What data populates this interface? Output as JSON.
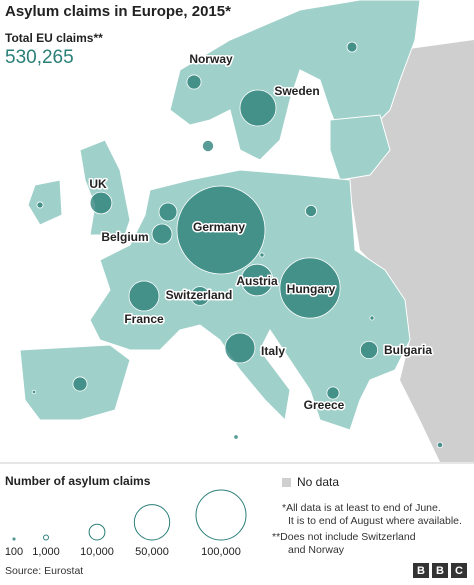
{
  "map": {
    "title": "Asylum claims in Europe, 2015*",
    "total_title": "Total EU claims**",
    "total": "530,265",
    "bubbles": [
      {
        "label": "Germany",
        "value": 310000
      },
      {
        "label": "Hungary",
        "value": 145000
      },
      {
        "label": "Sweden",
        "value": 52000
      },
      {
        "label": "Austria",
        "value": 40000
      },
      {
        "label": "Italy",
        "value": 36000
      },
      {
        "label": "France",
        "value": 36000
      },
      {
        "label": "UK",
        "value": 19000
      },
      {
        "label": "Belgium",
        "value": 16000
      },
      {
        "label": "Switzerland",
        "value": 14000
      },
      {
        "label": "Norway",
        "value": 8000
      },
      {
        "label": "Bulgaria",
        "value": 12000
      },
      {
        "label": "Greece",
        "value": 6000
      },
      {
        "value": 13000
      },
      {
        "value": 5000
      },
      {
        "value": 5000
      },
      {
        "value": 4000
      },
      {
        "value": 8000
      },
      {
        "value": 1500
      },
      {
        "value": 700
      },
      {
        "value": 700
      },
      {
        "value": 500
      },
      {
        "value": 1200
      },
      {
        "value": 800
      }
    ],
    "legend": {
      "title": "Number of asylum claims",
      "sizes": [
        100,
        {
          "value": 1000,
          "label": "1,000"
        },
        {
          "value": 10000,
          "label": "10,000"
        },
        {
          "value": 50000,
          "label": "50,000"
        },
        {
          "value": 100000,
          "label": "100,000"
        }
      ],
      "no_data": "No data"
    },
    "notes": [
      "*All data is at least to end of June.",
      "It is to end of August where available.",
      "**Does not include Switzerland",
      "and Norway"
    ],
    "source": "Source: Eurostat",
    "logo": [
      "B",
      "B",
      "C"
    ]
  }
}
